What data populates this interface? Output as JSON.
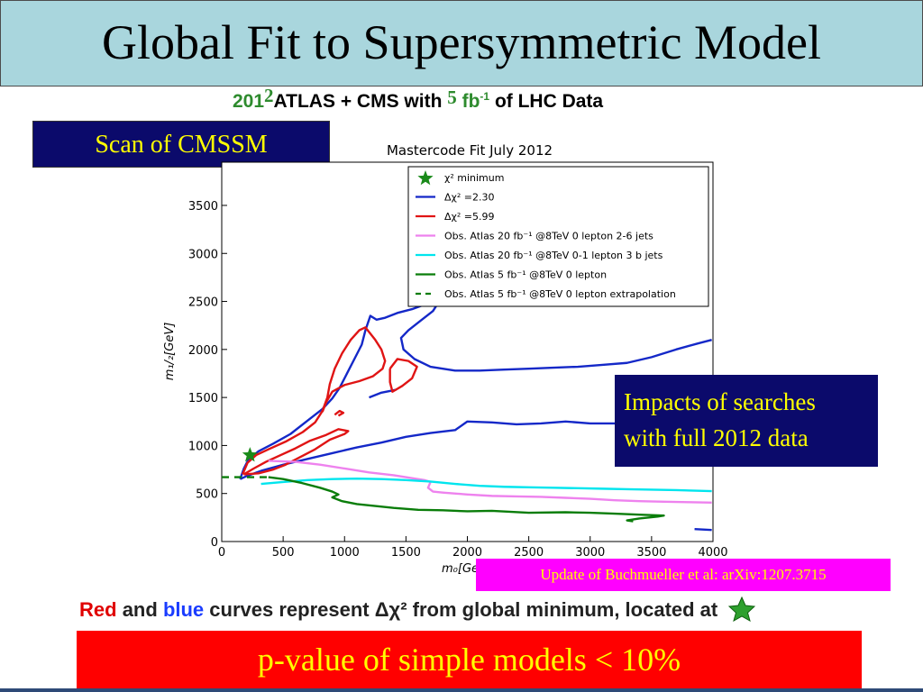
{
  "title": "Global Fit to Supersymmetric Model",
  "subtitle": {
    "part1": "201",
    "part2": "2",
    "part3": "ATLAS + CMS with",
    "part4": "5",
    "part5": "fb",
    "part5_sup": "-1",
    "part6": "of LHC Data"
  },
  "scan_box": "Scan of CMSSM",
  "impacts_box": {
    "line1": "Impacts of searches",
    "line2": "with full 2012 data"
  },
  "update_box": "Update of Buchmueller et al: arXiv:1207.3715",
  "caption": {
    "red": "Red",
    "and": "and",
    "blue": "blue",
    "rest": "curves represent Δχ² from global minimum, located at"
  },
  "pvalue": "p-value of simple models < 10%",
  "colors": {
    "blue": "#1428c8",
    "red": "#e01414",
    "violet": "#ee82ee",
    "cyan": "#00e5ee",
    "green": "#0a7d0a",
    "star": "#1a8a1a"
  },
  "chart_data": {
    "type": "line",
    "title": "Mastercode Fit July 2012",
    "xlabel": "m₀[Ge",
    "ylabel": "m₁/₂[GeV]",
    "xlim": [
      0,
      4000
    ],
    "ylim": [
      0,
      3950
    ],
    "x_ticks": [
      "0",
      "500",
      "1000",
      "1500",
      "2000",
      "2500",
      "3000",
      "3500",
      "4000"
    ],
    "y_ticks": [
      "0",
      "500",
      "1000",
      "1500",
      "2000",
      "2500",
      "3000",
      "3500"
    ],
    "legend": [
      {
        "label": "χ²  minimum",
        "style": "star",
        "color": "#1a8a1a"
      },
      {
        "label": "Δχ² =2.30",
        "style": "solid",
        "color": "#1428c8"
      },
      {
        "label": "Δχ² =5.99",
        "style": "solid",
        "color": "#e01414"
      },
      {
        "label": "Obs. Atlas 20 fb⁻¹ @8TeV 0 lepton 2-6 jets",
        "style": "solid",
        "color": "#ee82ee"
      },
      {
        "label": "Obs. Atlas 20 fb⁻¹ @8TeV 0-1 lepton 3 b jets",
        "style": "solid",
        "color": "#00e5ee"
      },
      {
        "label": "Obs. Atlas 5 fb⁻¹ @8TeV 0 lepton",
        "style": "solid",
        "color": "#0a7d0a"
      },
      {
        "label": "Obs. Atlas 5 fb⁻¹ @8TeV 0 lepton extrapolation",
        "style": "dashed",
        "color": "#0a7d0a"
      }
    ],
    "minimum": {
      "x": 230,
      "y": 900
    },
    "series": [
      {
        "name": "Δχ² =2.30",
        "color": "#1428c8",
        "segments": [
          [
            [
              150,
              650
            ],
            [
              180,
              760
            ],
            [
              220,
              860
            ],
            [
              300,
              940
            ],
            [
              420,
              1020
            ],
            [
              560,
              1120
            ],
            [
              700,
              1260
            ],
            [
              820,
              1380
            ],
            [
              900,
              1490
            ],
            [
              960,
              1600
            ],
            [
              1020,
              1750
            ],
            [
              1080,
              1900
            ],
            [
              1140,
              2050
            ],
            [
              1170,
              2200
            ],
            [
              1210,
              2350
            ],
            [
              1260,
              2310
            ],
            [
              1330,
              2330
            ],
            [
              1430,
              2380
            ],
            [
              1550,
              2420
            ],
            [
              1680,
              2480
            ],
            [
              1760,
              2480
            ],
            [
              1720,
              2400
            ],
            [
              1620,
              2300
            ],
            [
              1520,
              2200
            ],
            [
              1460,
              2120
            ],
            [
              1480,
              2000
            ],
            [
              1570,
              1900
            ],
            [
              1700,
              1820
            ],
            [
              1900,
              1780
            ],
            [
              2100,
              1780
            ],
            [
              2300,
              1790
            ],
            [
              2500,
              1800
            ],
            [
              2700,
              1810
            ],
            [
              2900,
              1820
            ],
            [
              3100,
              1840
            ],
            [
              3300,
              1860
            ],
            [
              3500,
              1920
            ],
            [
              3700,
              2000
            ],
            [
              3870,
              2060
            ],
            [
              3990,
              2100
            ]
          ],
          [
            [
              1200,
              1500
            ],
            [
              1300,
              1550
            ],
            [
              1420,
              1580
            ]
          ],
          [
            [
              150,
              650
            ],
            [
              200,
              680
            ],
            [
              330,
              740
            ],
            [
              500,
              800
            ],
            [
              700,
              860
            ],
            [
              900,
              920
            ],
            [
              1100,
              980
            ],
            [
              1300,
              1030
            ],
            [
              1500,
              1090
            ],
            [
              1700,
              1130
            ],
            [
              1900,
              1160
            ],
            [
              2000,
              1250
            ],
            [
              2200,
              1240
            ],
            [
              2400,
              1220
            ],
            [
              2600,
              1230
            ],
            [
              2800,
              1250
            ],
            [
              3000,
              1230
            ],
            [
              3200,
              1230
            ],
            [
              3400,
              1210
            ],
            [
              3600,
              1220
            ],
            [
              3800,
              1220
            ],
            [
              3990,
              1200
            ]
          ],
          [
            [
              3990,
              120
            ],
            [
              3850,
              130
            ]
          ]
        ]
      },
      {
        "name": "Δχ² =5.99",
        "color": "#e01414",
        "segments": [
          [
            [
              170,
              700
            ],
            [
              210,
              820
            ],
            [
              280,
              900
            ],
            [
              380,
              960
            ],
            [
              520,
              1040
            ],
            [
              660,
              1140
            ],
            [
              760,
              1240
            ],
            [
              820,
              1360
            ],
            [
              860,
              1500
            ],
            [
              880,
              1640
            ],
            [
              920,
              1800
            ],
            [
              980,
              1960
            ],
            [
              1050,
              2100
            ],
            [
              1120,
              2200
            ],
            [
              1170,
              2230
            ],
            [
              1250,
              2100
            ],
            [
              1300,
              2000
            ],
            [
              1330,
              1880
            ],
            [
              1310,
              1800
            ],
            [
              1230,
              1720
            ],
            [
              1120,
              1670
            ],
            [
              1000,
              1630
            ],
            [
              900,
              1560
            ],
            [
              850,
              1450
            ],
            [
              820,
              1350
            ]
          ],
          [
            [
              1370,
              1800
            ],
            [
              1430,
              1900
            ],
            [
              1520,
              1880
            ],
            [
              1590,
              1820
            ],
            [
              1550,
              1700
            ],
            [
              1470,
              1620
            ],
            [
              1390,
              1560
            ],
            [
              1370,
              1660
            ],
            [
              1370,
              1800
            ]
          ],
          [
            [
              180,
              700
            ],
            [
              260,
              760
            ],
            [
              360,
              830
            ],
            [
              480,
              900
            ],
            [
              600,
              970
            ],
            [
              720,
              1050
            ],
            [
              850,
              1110
            ],
            [
              950,
              1170
            ],
            [
              1030,
              1150
            ],
            [
              1000,
              1120
            ],
            [
              880,
              1060
            ],
            [
              760,
              960
            ],
            [
              640,
              880
            ],
            [
              520,
              800
            ],
            [
              420,
              750
            ],
            [
              300,
              710
            ],
            [
              180,
              700
            ]
          ],
          [
            [
              920,
              1320
            ],
            [
              960,
              1360
            ],
            [
              990,
              1340
            ],
            [
              950,
              1310
            ]
          ]
        ]
      },
      {
        "name": "Obs. Atlas 20 fb⁻¹ @8TeV 0 lepton 2-6 jets",
        "color": "#ee82ee",
        "segments": [
          [
            [
              380,
              840
            ],
            [
              600,
              830
            ],
            [
              800,
              800
            ],
            [
              1000,
              760
            ],
            [
              1200,
              720
            ],
            [
              1400,
              690
            ],
            [
              1550,
              660
            ],
            [
              1650,
              640
            ],
            [
              1700,
              620
            ],
            [
              1680,
              560
            ],
            [
              1720,
              520
            ],
            [
              1800,
              510
            ],
            [
              2000,
              490
            ],
            [
              2200,
              475
            ],
            [
              2400,
              470
            ],
            [
              2600,
              465
            ],
            [
              2800,
              455
            ],
            [
              3000,
              445
            ],
            [
              3200,
              430
            ],
            [
              3400,
              420
            ],
            [
              3600,
              415
            ],
            [
              3800,
              410
            ],
            [
              3990,
              405
            ]
          ]
        ]
      },
      {
        "name": "Obs. Atlas 20 fb⁻¹ @8TeV 0-1 lepton 3 b jets",
        "color": "#00e5ee",
        "segments": [
          [
            [
              320,
              600
            ],
            [
              500,
              620
            ],
            [
              700,
              640
            ],
            [
              900,
              650
            ],
            [
              1100,
              655
            ],
            [
              1300,
              650
            ],
            [
              1500,
              640
            ],
            [
              1700,
              625
            ],
            [
              1900,
              600
            ],
            [
              2100,
              580
            ],
            [
              2300,
              570
            ],
            [
              2500,
              565
            ],
            [
              2700,
              560
            ],
            [
              2900,
              555
            ],
            [
              3100,
              550
            ],
            [
              3300,
              545
            ],
            [
              3500,
              540
            ],
            [
              3700,
              535
            ],
            [
              3990,
              525
            ]
          ]
        ]
      },
      {
        "name": "Obs. Atlas 5 fb⁻¹ @8TeV 0 lepton",
        "color": "#0a7d0a",
        "segments": [
          [
            [
              380,
              670
            ],
            [
              500,
              650
            ],
            [
              650,
              610
            ],
            [
              800,
              560
            ],
            [
              900,
              520
            ],
            [
              950,
              490
            ],
            [
              900,
              460
            ],
            [
              980,
              420
            ],
            [
              1100,
              390
            ],
            [
              1250,
              370
            ],
            [
              1400,
              350
            ],
            [
              1600,
              330
            ],
            [
              1800,
              325
            ],
            [
              2000,
              315
            ],
            [
              2200,
              320
            ],
            [
              2500,
              300
            ],
            [
              2800,
              305
            ],
            [
              3000,
              300
            ],
            [
              3200,
              290
            ],
            [
              3400,
              280
            ],
            [
              3600,
              270
            ],
            [
              3550,
              260
            ],
            [
              3400,
              240
            ],
            [
              3300,
              220
            ],
            [
              3350,
              210
            ]
          ]
        ]
      },
      {
        "name": "Obs. Atlas 5 fb⁻¹ @8TeV 0 lepton extrapolation",
        "color": "#0a7d0a",
        "dashed": true,
        "segments": [
          [
            [
              0,
              670
            ],
            [
              100,
              670
            ],
            [
              250,
              670
            ],
            [
              380,
              670
            ]
          ]
        ]
      }
    ]
  }
}
